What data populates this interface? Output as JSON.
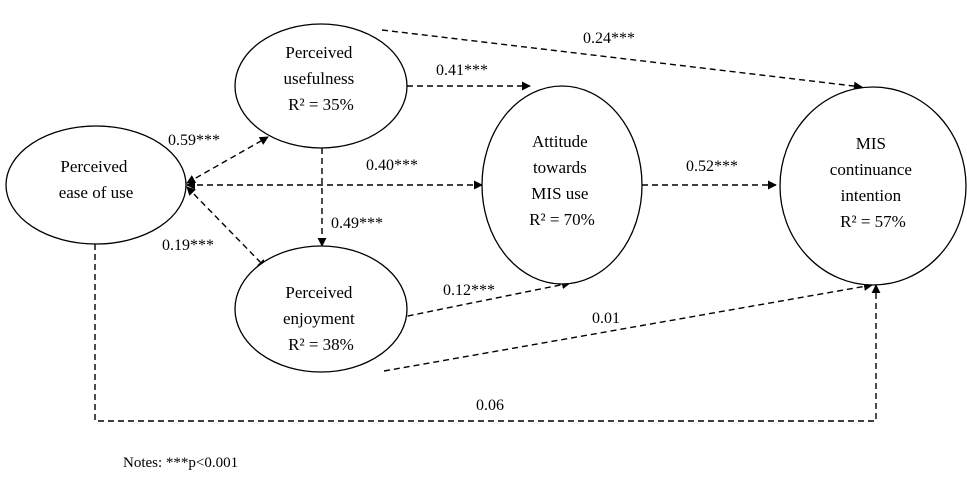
{
  "nodes": [
    {
      "id": "peou",
      "lines": [
        "Perceived",
        "ease of use"
      ]
    },
    {
      "id": "pu",
      "lines": [
        "Perceived",
        "usefulness",
        "R² = 35%"
      ]
    },
    {
      "id": "pe",
      "lines": [
        "Perceived",
        "enjoyment",
        "R² = 38%"
      ]
    },
    {
      "id": "att",
      "lines": [
        "Attitude",
        "towards",
        "MIS use",
        "R² = 70%"
      ]
    },
    {
      "id": "ci",
      "lines": [
        "MIS",
        "continuance",
        "intention",
        "R² = 57%"
      ]
    }
  ],
  "edges": [
    {
      "id": "peou-pu",
      "from": "peou",
      "to": "pu",
      "label": "0.59***"
    },
    {
      "id": "peou-att",
      "from": "peou",
      "to": "att",
      "label": "0.40***"
    },
    {
      "id": "peou-pe",
      "from": "peou",
      "to": "pe",
      "label": "0.19***"
    },
    {
      "id": "pu-pe",
      "from": "pu",
      "to": "pe",
      "label": "0.49***"
    },
    {
      "id": "pu-att",
      "from": "pu",
      "to": "att",
      "label": "0.41***"
    },
    {
      "id": "pu-ci",
      "from": "pu",
      "to": "ci",
      "label": "0.24***"
    },
    {
      "id": "pe-att",
      "from": "pe",
      "to": "att",
      "label": "0.12***"
    },
    {
      "id": "pe-ci",
      "from": "pe",
      "to": "ci",
      "label": "0.01"
    },
    {
      "id": "att-ci",
      "from": "att",
      "to": "ci",
      "label": "0.52***"
    },
    {
      "id": "peou-ci",
      "from": "peou",
      "to": "ci",
      "label": "0.06"
    }
  ],
  "notes": "Notes: ***p<0.001"
}
